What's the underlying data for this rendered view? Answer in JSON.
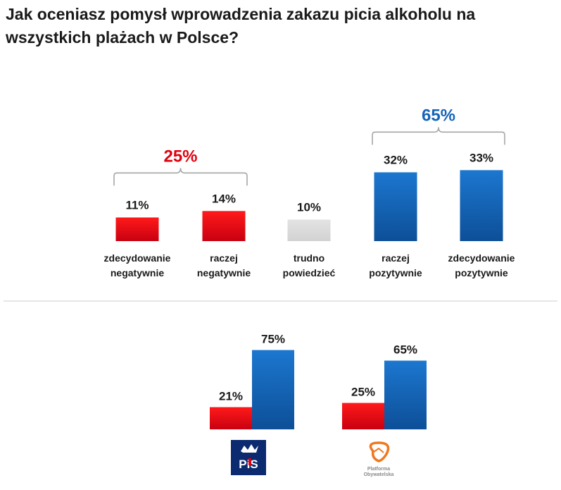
{
  "title": "Jak oceniasz pomysł wprowadzenia zakazu picia alkoholu na wszystkich plażach w Polsce?",
  "colors": {
    "negative": "#e0000f",
    "neutral": "#d9d9d9",
    "positive": "#1565b8",
    "group_negative": "#e8191e",
    "group_positive": "#0e6fc1",
    "bracket": "#a6a6a6",
    "divider": "#cccccc"
  },
  "chart_data": [
    {
      "type": "bar",
      "title": "Jak oceniasz pomysł wprowadzenia zakazu picia alkoholu na wszystkich plażach w Polsce?",
      "unit": "%",
      "ylim": [
        0,
        40
      ],
      "bars": [
        {
          "label": [
            "zdecydowanie",
            "negatywnie"
          ],
          "value": 11,
          "display": "11%",
          "tone": "negative"
        },
        {
          "label": [
            "raczej",
            "negatywnie"
          ],
          "value": 14,
          "display": "14%",
          "tone": "negative"
        },
        {
          "label": [
            "trudno",
            "powiedzieć"
          ],
          "value": 10,
          "display": "10%",
          "tone": "neutral"
        },
        {
          "label": [
            "raczej",
            "pozytywnie"
          ],
          "value": 32,
          "display": "32%",
          "tone": "positive"
        },
        {
          "label": [
            "zdecydowanie",
            "pozytywnie"
          ],
          "value": 33,
          "display": "33%",
          "tone": "positive"
        }
      ],
      "groups": [
        {
          "tone": "negative",
          "value": 25,
          "display": "25%",
          "bars": [
            0,
            1
          ]
        },
        {
          "tone": "positive",
          "value": 65,
          "display": "65%",
          "bars": [
            3,
            4
          ]
        }
      ]
    },
    {
      "type": "bar",
      "unit": "%",
      "ylim": [
        0,
        100
      ],
      "parties": [
        {
          "name": "PiS",
          "logo_text": "PiS",
          "series": [
            {
              "tone": "negative",
              "value": 21,
              "display": "21%"
            },
            {
              "tone": "positive",
              "value": 75,
              "display": "75%"
            }
          ]
        },
        {
          "name": "Platforma Obywatelska",
          "logo_text": [
            "Platforma",
            "Obywatelska"
          ],
          "series": [
            {
              "tone": "negative",
              "value": 25,
              "display": "25%"
            },
            {
              "tone": "positive",
              "value": 65,
              "display": "65%"
            }
          ]
        }
      ]
    }
  ]
}
